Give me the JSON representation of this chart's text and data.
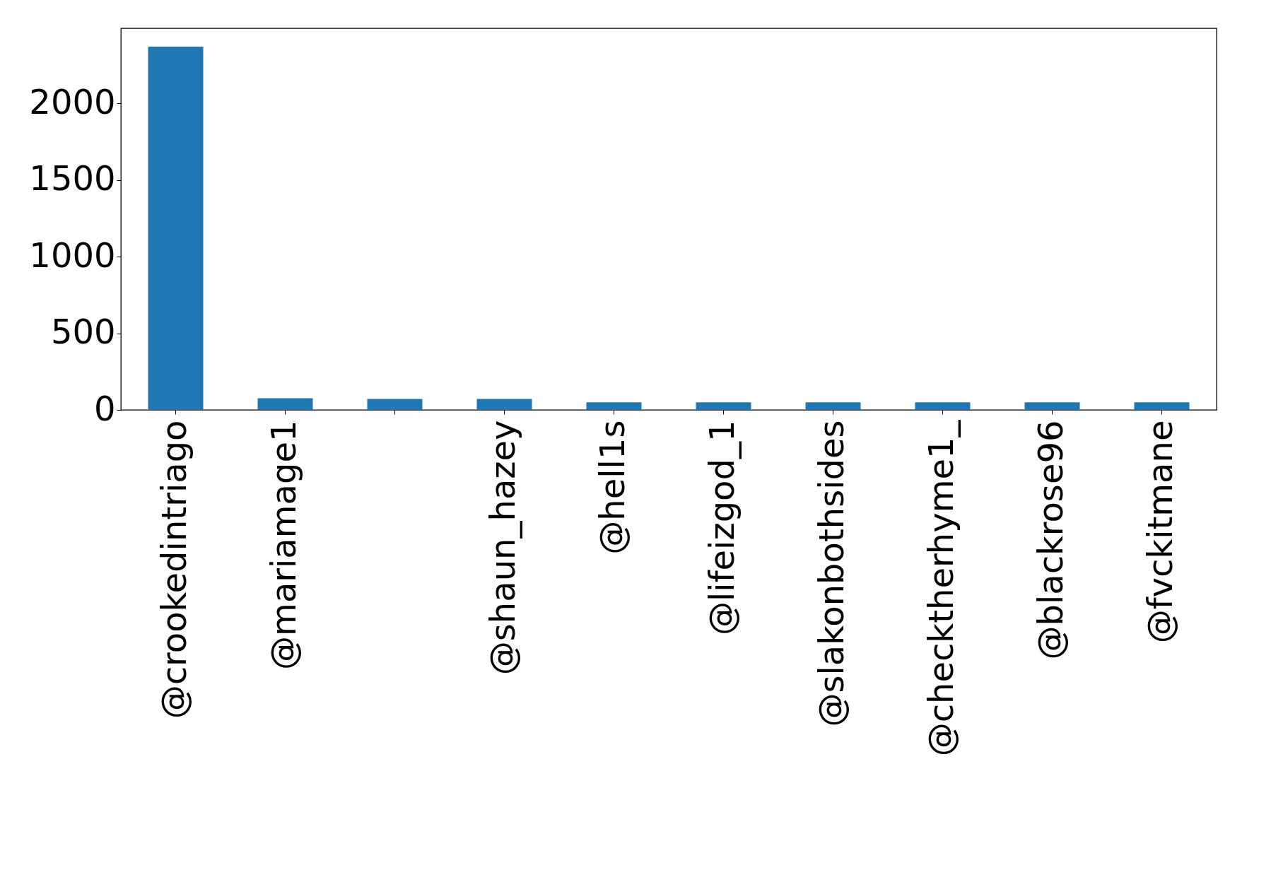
{
  "chart_data": {
    "type": "bar",
    "categories": [
      "@crookedintriago",
      "@mariamage1",
      null,
      "@shaun_hazey",
      "@hell1s",
      "@lifeizgod_1",
      "@slakonbothsides",
      "@checktherhyme1_",
      "@blackrose96",
      "@fvckitmane"
    ],
    "values": [
      2370,
      76,
      71,
      71,
      50,
      50,
      50,
      50,
      50,
      50
    ],
    "color": "#1f77b4",
    "ylim": [
      0,
      2490
    ],
    "yticks": [
      0,
      500,
      1000,
      1500,
      2000
    ],
    "grid": false
  }
}
